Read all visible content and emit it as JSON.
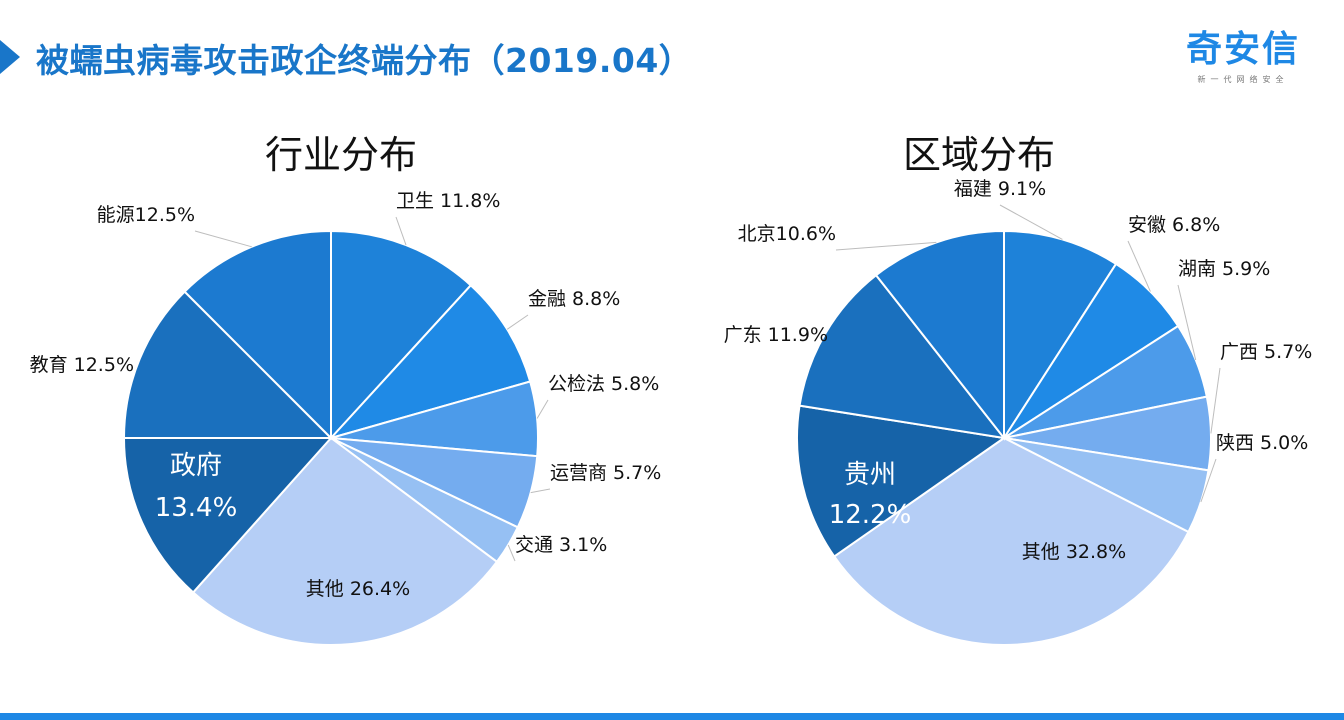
{
  "header": {
    "title": "被蠕虫病毒攻击政企终端分布（2019.04）",
    "logo_name": "奇安信",
    "logo_tagline": "新一代网络安全"
  },
  "colors": {
    "accent": "#1976c9",
    "bottom_bar": "#1e88e5",
    "slice_edge": "#ffffff"
  },
  "chart_data": [
    {
      "type": "pie",
      "title": "行业分布",
      "slices": [
        {
          "name": "卫生",
          "value": 11.8,
          "label": "卫生 11.8%",
          "color": "#1e82d9"
        },
        {
          "name": "金融",
          "value": 8.8,
          "label": "金融 8.8%",
          "color": "#1f8ae6"
        },
        {
          "name": "公检法",
          "value": 5.8,
          "label": "公检法 5.8%",
          "color": "#4c9bea"
        },
        {
          "name": "运营商",
          "value": 5.7,
          "label": "运营商 5.7%",
          "color": "#74acef"
        },
        {
          "name": "交通",
          "value": 3.1,
          "label": "交通 3.1%",
          "color": "#96c0f3"
        },
        {
          "name": "其他",
          "value": 26.4,
          "label": "其他 26.4%",
          "color": "#b5cef6"
        },
        {
          "name": "政府",
          "value": 13.4,
          "label": "政府",
          "label2": "13.4%",
          "color": "#1663a8",
          "inside": true
        },
        {
          "name": "教育",
          "value": 12.5,
          "label": "教育 12.5%",
          "color": "#1a70be"
        },
        {
          "name": "能源",
          "value": 12.5,
          "label": "能源12.5%",
          "color": "#1c7ad0"
        }
      ]
    },
    {
      "type": "pie",
      "title": "区域分布",
      "slices": [
        {
          "name": "福建",
          "value": 9.1,
          "label": "福建 9.1%",
          "color": "#1e82d9"
        },
        {
          "name": "安徽",
          "value": 6.8,
          "label": "安徽 6.8%",
          "color": "#1f8ae6"
        },
        {
          "name": "湖南",
          "value": 5.9,
          "label": "湖南 5.9%",
          "color": "#4c9bea"
        },
        {
          "name": "广西",
          "value": 5.7,
          "label": "广西 5.7%",
          "color": "#74acef"
        },
        {
          "name": "陕西",
          "value": 5.0,
          "label": "陕西 5.0%",
          "color": "#96c0f3"
        },
        {
          "name": "其他",
          "value": 32.8,
          "label": "其他 32.8%",
          "color": "#b5cef6"
        },
        {
          "name": "贵州",
          "value": 12.2,
          "label": "贵州",
          "label2": "12.2%",
          "color": "#1663a8",
          "inside": true
        },
        {
          "name": "广东",
          "value": 11.9,
          "label": "广东 11.9%",
          "color": "#1a70be"
        },
        {
          "name": "北京",
          "value": 10.6,
          "label": "北京10.6%",
          "color": "#1c7ad0"
        }
      ]
    }
  ]
}
